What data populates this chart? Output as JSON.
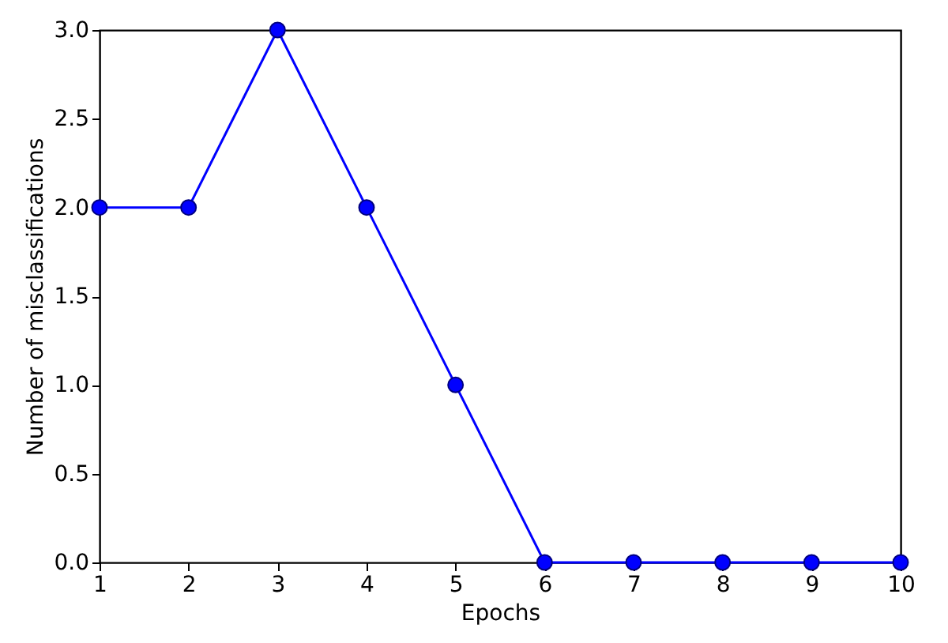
{
  "chart_data": {
    "type": "line",
    "xlabel": "Epochs",
    "ylabel": "Number of misclassifications",
    "x": [
      1,
      2,
      3,
      4,
      5,
      6,
      7,
      8,
      9,
      10
    ],
    "series": [
      {
        "color": "#0000ff",
        "values": [
          2,
          2,
          3,
          2,
          1,
          0,
          0,
          0,
          0,
          0
        ]
      }
    ],
    "xlim": [
      1,
      10
    ],
    "xticks": [
      1,
      2,
      3,
      4,
      5,
      6,
      7,
      8,
      9,
      10
    ],
    "ylim": [
      0,
      3
    ],
    "yticks": [
      {
        "value": 0,
        "label": "0.0"
      },
      {
        "value": 0.5,
        "label": "0.5"
      },
      {
        "value": 1,
        "label": "1.0"
      },
      {
        "value": 1.5,
        "label": "1.5"
      },
      {
        "value": 2,
        "label": "2.0"
      },
      {
        "value": 2.5,
        "label": "2.5"
      },
      {
        "value": 3,
        "label": "3.0"
      }
    ],
    "grid": false,
    "marker": "circle",
    "line_style": "solid"
  }
}
